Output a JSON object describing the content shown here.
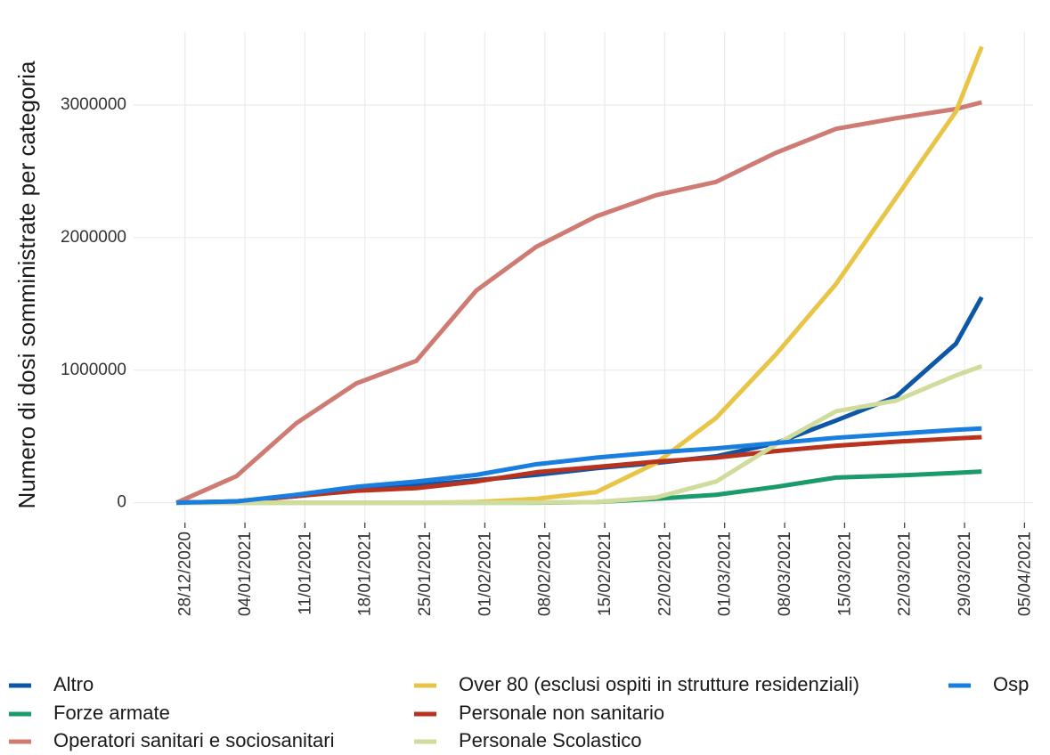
{
  "chart_data": {
    "type": "line",
    "y_label": "Numero di dosi somministrate per categoria",
    "x": [
      "27/12/2020",
      "03/01/2021",
      "10/01/2021",
      "17/01/2021",
      "24/01/2021",
      "31/01/2021",
      "07/02/2021",
      "14/02/2021",
      "21/02/2021",
      "28/02/2021",
      "07/03/2021",
      "14/03/2021",
      "21/03/2021",
      "28/03/2021",
      "31/03/2021"
    ],
    "xlim": [
      "22/12/2020",
      "06/04/2021"
    ],
    "xticks": [
      "28/12/2020",
      "04/01/2021",
      "11/01/2021",
      "18/01/2021",
      "25/01/2021",
      "01/02/2021",
      "08/02/2021",
      "15/02/2021",
      "22/02/2021",
      "01/03/2021",
      "08/03/2021",
      "15/03/2021",
      "22/03/2021",
      "29/03/2021",
      "05/04/2021"
    ],
    "ylim": [
      -150000,
      3550000
    ],
    "yticks": [
      0,
      1000000,
      2000000,
      3000000
    ],
    "grid": true,
    "legend": "bottom",
    "series": [
      {
        "name": "Altro",
        "color": "#0d57a6",
        "values": [
          0,
          10000,
          50000,
          100000,
          130000,
          170000,
          210000,
          260000,
          300000,
          350000,
          450000,
          620000,
          800000,
          1200000,
          1550000
        ]
      },
      {
        "name": "Forze armate",
        "color": "#1b9a6c",
        "values": [
          0,
          0,
          0,
          0,
          0,
          0,
          0,
          5000,
          30000,
          60000,
          120000,
          190000,
          205000,
          225000,
          235000
        ]
      },
      {
        "name": "Operatori sanitari e sociosanitari",
        "color": "#cd7b73",
        "values": [
          0,
          200000,
          600000,
          900000,
          1070000,
          1600000,
          1930000,
          2160000,
          2320000,
          2420000,
          2640000,
          2820000,
          2900000,
          2970000,
          3020000
        ]
      },
      {
        "name": "Over 80 (esclusi ospiti in strutture residenziali)",
        "color": "#e8c547",
        "values": [
          0,
          0,
          0,
          0,
          0,
          5000,
          30000,
          80000,
          300000,
          640000,
          1120000,
          1650000,
          2300000,
          2950000,
          3440000
        ]
      },
      {
        "name": "Personale non sanitario",
        "color": "#b8321e",
        "values": [
          0,
          10000,
          50000,
          90000,
          110000,
          160000,
          230000,
          270000,
          310000,
          340000,
          390000,
          430000,
          460000,
          485000,
          495000
        ]
      },
      {
        "name": "Personale Scolastico",
        "color": "#cfdc9b",
        "values": [
          0,
          0,
          0,
          0,
          0,
          0,
          2000,
          5000,
          40000,
          160000,
          440000,
          690000,
          770000,
          960000,
          1030000
        ]
      },
      {
        "name": "Osp",
        "color": "#1a7ee0",
        "values": [
          0,
          10000,
          60000,
          120000,
          160000,
          210000,
          290000,
          340000,
          380000,
          410000,
          450000,
          490000,
          520000,
          550000,
          560000
        ]
      }
    ]
  }
}
